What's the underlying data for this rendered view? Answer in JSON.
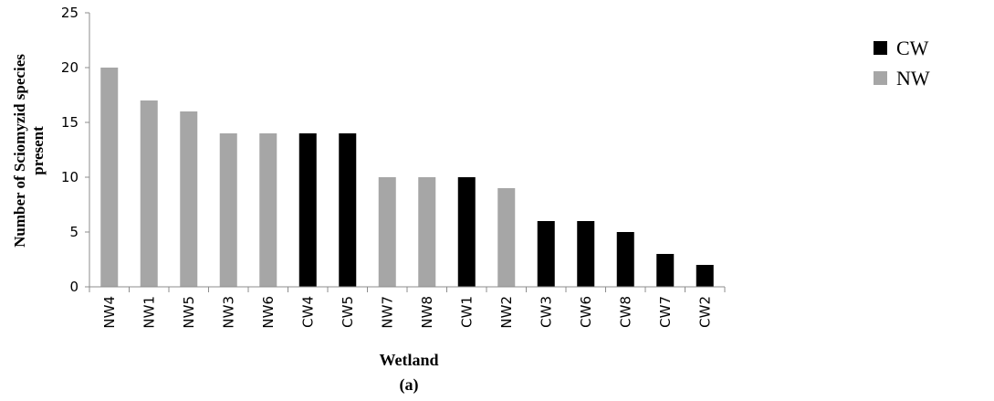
{
  "chart_data": {
    "type": "bar",
    "ylabel": "Number of Sciomyzid species present",
    "ylabel_lines": [
      "Number of Sciomyzid species",
      "present"
    ],
    "xlabel": "Wetland",
    "caption": "(a)",
    "ylim": [
      0,
      25
    ],
    "yticks": [
      0,
      5,
      10,
      15,
      20,
      25
    ],
    "categories": [
      "NW4",
      "NW1",
      "NW5",
      "NW3",
      "NW6",
      "CW4",
      "CW5",
      "NW7",
      "NW8",
      "CW1",
      "NW2",
      "CW3",
      "CW6",
      "CW8",
      "CW7",
      "CW2"
    ],
    "values": [
      20,
      17,
      16,
      14,
      14,
      14,
      14,
      10,
      10,
      10,
      9,
      6,
      6,
      5,
      3,
      2
    ],
    "groups": [
      "NW",
      "NW",
      "NW",
      "NW",
      "NW",
      "CW",
      "CW",
      "NW",
      "NW",
      "CW",
      "NW",
      "CW",
      "CW",
      "CW",
      "CW",
      "CW"
    ],
    "series": [
      {
        "name": "CW",
        "color": "#000000"
      },
      {
        "name": "NW",
        "color": "#a6a6a6"
      }
    ],
    "legend_position": "right",
    "grid": false
  }
}
